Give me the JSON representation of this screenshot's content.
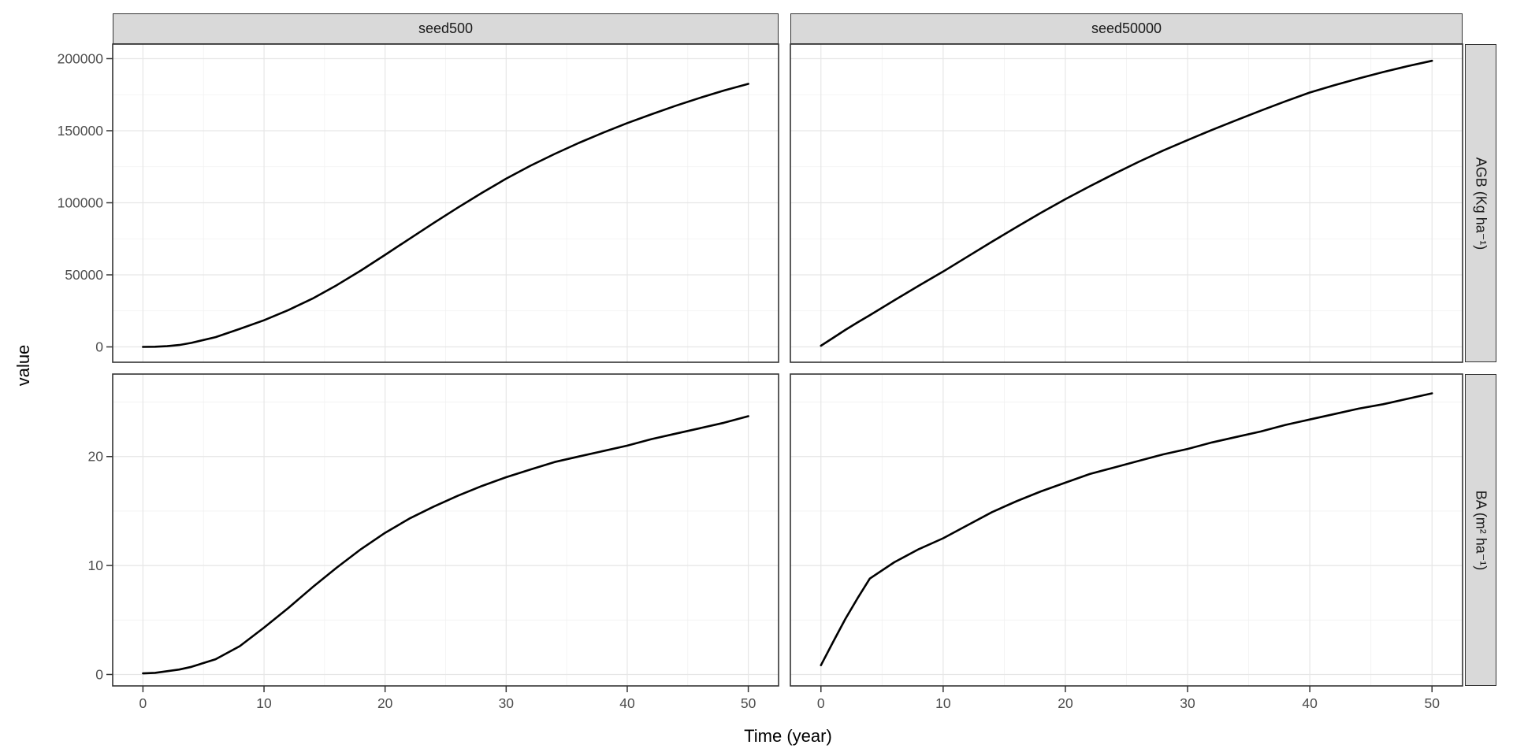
{
  "figure": {
    "axis": {
      "x_title": "Time (year)",
      "y_title": "value"
    },
    "facets": {
      "columns": [
        "seed500",
        "seed50000"
      ],
      "rows": [
        "AGB (Kg ha⁻¹)",
        "BA (m² ha⁻¹)"
      ]
    },
    "style": {
      "background": "#ffffff",
      "strip_fill": "#d9d9d9",
      "strip_border": "#333333",
      "panel_border": "#333333",
      "grid_major": "#e6e6e6",
      "grid_minor": "#f1f1f1",
      "tick_color": "#333333",
      "tick_label_color": "#4d4d4d",
      "line_color": "#000000"
    }
  },
  "chart_data": [
    {
      "type": "line",
      "facet_col": "seed500",
      "facet_row": "AGB (Kg ha⁻¹)",
      "xlim": [
        -2.5,
        52.5
      ],
      "ylim": [
        -10650,
        210100
      ],
      "x_ticks": [
        0,
        10,
        20,
        30,
        40,
        50
      ],
      "x_tick_labels": [
        "0",
        "10",
        "20",
        "30",
        "40",
        "50"
      ],
      "x_minor": [
        5,
        15,
        25,
        35,
        45
      ],
      "y_ticks": [
        0,
        50000,
        100000,
        150000,
        200000
      ],
      "y_tick_labels": [
        "0",
        "50000",
        "100000",
        "150000",
        "200000"
      ],
      "y_minor": [
        25000,
        75000,
        125000,
        175000
      ],
      "x": [
        0,
        1,
        2,
        3,
        4,
        6,
        8,
        10,
        12,
        14,
        16,
        18,
        20,
        22,
        24,
        26,
        28,
        30,
        32,
        34,
        36,
        38,
        40,
        42,
        44,
        46,
        48,
        50
      ],
      "y": [
        0,
        100,
        500,
        1300,
        2800,
        6800,
        12500,
        18500,
        25500,
        33500,
        42800,
        53000,
        63900,
        74900,
        85900,
        96600,
        106900,
        116700,
        125700,
        133900,
        141500,
        148600,
        155300,
        161400,
        167300,
        172800,
        177900,
        182500
      ]
    },
    {
      "type": "line",
      "facet_col": "seed50000",
      "facet_row": "AGB (Kg ha⁻¹)",
      "xlim": [
        -2.5,
        52.5
      ],
      "ylim": [
        -10650,
        210100
      ],
      "x_ticks": [
        0,
        10,
        20,
        30,
        40,
        50
      ],
      "x_tick_labels": [
        "0",
        "10",
        "20",
        "30",
        "40",
        "50"
      ],
      "x_minor": [
        5,
        15,
        25,
        35,
        45
      ],
      "y_ticks": [
        0,
        50000,
        100000,
        150000,
        200000
      ],
      "y_tick_labels": [
        "0",
        "50000",
        "100000",
        "150000",
        "200000"
      ],
      "y_minor": [
        25000,
        75000,
        125000,
        175000
      ],
      "x": [
        0,
        1,
        2,
        3,
        4,
        6,
        8,
        10,
        12,
        14,
        16,
        18,
        20,
        22,
        24,
        26,
        28,
        30,
        32,
        34,
        36,
        38,
        40,
        42,
        44,
        46,
        48,
        50
      ],
      "y": [
        800,
        6300,
        11800,
        17000,
        22000,
        32300,
        42400,
        52300,
        62700,
        73000,
        83100,
        93000,
        102500,
        111500,
        120100,
        128400,
        136200,
        143500,
        150600,
        157300,
        164000,
        170400,
        176500,
        181600,
        186300,
        190700,
        194800,
        198500
      ]
    },
    {
      "type": "line",
      "facet_col": "seed500",
      "facet_row": "BA (m² ha⁻¹)",
      "xlim": [
        -2.5,
        52.5
      ],
      "ylim": [
        -1.05,
        27.57
      ],
      "x_ticks": [
        0,
        10,
        20,
        30,
        40,
        50
      ],
      "x_tick_labels": [
        "0",
        "10",
        "20",
        "30",
        "40",
        "50"
      ],
      "x_minor": [
        5,
        15,
        25,
        35,
        45
      ],
      "y_ticks": [
        0,
        10,
        20
      ],
      "y_tick_labels": [
        "0",
        "10",
        "20"
      ],
      "y_minor": [
        5,
        15,
        25
      ],
      "x": [
        0,
        1,
        2,
        3,
        4,
        6,
        8,
        10,
        12,
        14,
        16,
        18,
        20,
        22,
        24,
        26,
        28,
        30,
        32,
        34,
        36,
        38,
        40,
        42,
        44,
        46,
        48,
        50
      ],
      "y": [
        0.1,
        0.15,
        0.3,
        0.45,
        0.7,
        1.4,
        2.6,
        4.3,
        6.1,
        8.0,
        9.8,
        11.5,
        13.0,
        14.3,
        15.4,
        16.4,
        17.3,
        18.1,
        18.8,
        19.5,
        20.0,
        20.5,
        21.0,
        21.6,
        22.1,
        22.6,
        23.1,
        23.7
      ]
    },
    {
      "type": "line",
      "facet_col": "seed50000",
      "facet_row": "BA (m² ha⁻¹)",
      "xlim": [
        -2.5,
        52.5
      ],
      "ylim": [
        -1.05,
        27.57
      ],
      "x_ticks": [
        0,
        10,
        20,
        30,
        40,
        50
      ],
      "x_tick_labels": [
        "0",
        "10",
        "20",
        "30",
        "40",
        "50"
      ],
      "x_minor": [
        5,
        15,
        25,
        35,
        45
      ],
      "y_ticks": [
        0,
        10,
        20
      ],
      "y_tick_labels": [
        "0",
        "10",
        "20"
      ],
      "y_minor": [
        5,
        15,
        25
      ],
      "x": [
        0,
        1,
        2,
        3,
        4,
        6,
        8,
        10,
        12,
        14,
        16,
        18,
        20,
        22,
        24,
        26,
        28,
        30,
        32,
        34,
        36,
        38,
        40,
        42,
        44,
        46,
        48,
        50
      ],
      "y": [
        0.85,
        3.0,
        5.1,
        7.0,
        8.8,
        10.3,
        11.5,
        12.5,
        13.7,
        14.9,
        15.9,
        16.8,
        17.6,
        18.4,
        19.0,
        19.6,
        20.2,
        20.7,
        21.3,
        21.8,
        22.3,
        22.9,
        23.4,
        23.9,
        24.4,
        24.8,
        25.3,
        25.8
      ]
    }
  ]
}
